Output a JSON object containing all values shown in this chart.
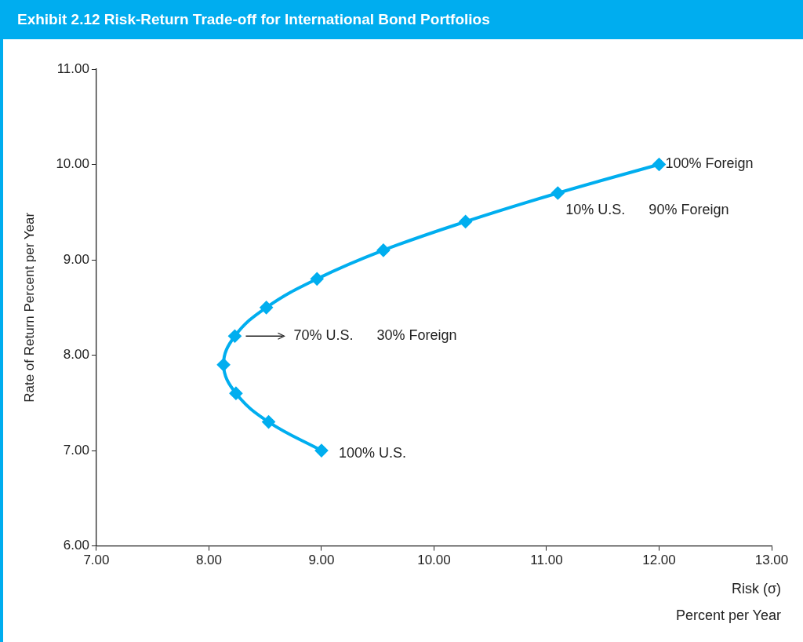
{
  "chart_data": {
    "type": "line",
    "title": "Exhibit 2.12 Risk-Return Trade-off for International Bond Portfolios",
    "xlabel": "Risk (σ)\nPercent per Year",
    "ylabel": "Rate of Return Percent per Year",
    "series": [
      {
        "color": "#00aeef",
        "x": [
          9.0,
          8.53,
          8.24,
          8.13,
          8.23,
          8.51,
          8.96,
          9.55,
          10.28,
          11.1,
          12.0
        ],
        "values": [
          7.0,
          7.3,
          7.6,
          7.9,
          8.2,
          8.5,
          8.8,
          9.1,
          9.4,
          9.7,
          10.0
        ]
      }
    ],
    "xlim": [
      7,
      13
    ],
    "xticks": [
      {
        "value": 7,
        "label": "7.00"
      },
      {
        "value": 8,
        "label": "8.00"
      },
      {
        "value": 9,
        "label": "9.00"
      },
      {
        "value": 10,
        "label": "10.00"
      },
      {
        "value": 11,
        "label": "11.00"
      },
      {
        "value": 12,
        "label": "12.00"
      },
      {
        "value": 13,
        "label": "13.00"
      }
    ],
    "ylim": [
      6,
      11
    ],
    "yticks": [
      {
        "value": 6,
        "label": "6.00"
      },
      {
        "value": 7,
        "label": "7.00"
      },
      {
        "value": 8,
        "label": "8.00"
      },
      {
        "value": 9,
        "label": "9.00"
      },
      {
        "value": 10,
        "label": "10.00"
      },
      {
        "value": 11,
        "label": "11.00"
      }
    ],
    "annotations": [
      {
        "text": "100% Foreign",
        "x": 12.0,
        "y": 10.0
      },
      {
        "text": "10% U.S.    90% Foreign",
        "x": 11.1,
        "y": 9.7
      },
      "70% U.S.    30% Foreign",
      {
        "text": "100% U.S.",
        "x": 9.0,
        "y": 7.0
      }
    ],
    "grid": false,
    "legend": false,
    "marker": "diamond",
    "line_style": "solid"
  }
}
